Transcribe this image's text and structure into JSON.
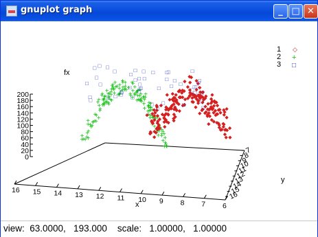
{
  "window": {
    "title": "gnuplot graph",
    "minimize": "_",
    "maximize": "□",
    "close": "✕"
  },
  "icons": {
    "app": "gnuplot-app-icon"
  },
  "status": {
    "text": "view:  63.0000,   193.000    scale:   1.00000,   1.00000"
  },
  "chart_data": {
    "type": "scatter3d",
    "zlabel": "fx",
    "xlabel": "x",
    "ylabel": "y",
    "z_ticks": [
      "200",
      "180",
      "160",
      "140",
      "120",
      "100",
      "80",
      "60",
      "40",
      "20",
      "0"
    ],
    "x_ticks": [
      "16",
      "15",
      "14",
      "13",
      "12",
      "11",
      "10",
      "9",
      "8",
      "7",
      "6"
    ],
    "y_ticks": [
      "16",
      "15",
      "14",
      "13",
      "12",
      "11",
      "10",
      "9",
      "8",
      "7"
    ],
    "legend": [
      {
        "label": "1",
        "symbol": "◇",
        "color": "#d42020"
      },
      {
        "label": "2",
        "symbol": "+",
        "color": "#12c012"
      },
      {
        "label": "3",
        "symbol": "□",
        "color": "#1c2fc4"
      }
    ]
  }
}
